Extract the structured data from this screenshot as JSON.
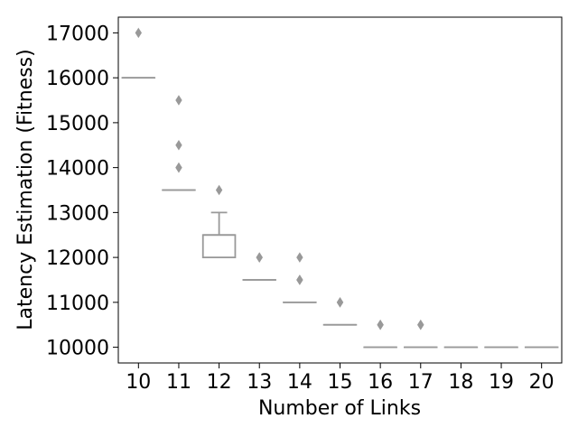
{
  "chart_data": {
    "type": "box",
    "title": "",
    "xlabel": "Number of Links",
    "ylabel": "Latency Estimation (Fitness)",
    "categories": [
      "10",
      "11",
      "12",
      "13",
      "14",
      "15",
      "16",
      "17",
      "18",
      "19",
      "20"
    ],
    "ylim": [
      9650,
      17350
    ],
    "yticks": [
      10000,
      11000,
      12000,
      13000,
      14000,
      15000,
      16000,
      17000
    ],
    "ytick_labels": [
      "10000",
      "11000",
      "12000",
      "13000",
      "14000",
      "15000",
      "16000",
      "17000"
    ],
    "grid": false,
    "box_color": "#999999",
    "boxes": [
      {
        "category": "10",
        "q1": 16000,
        "median": 16000,
        "q3": 16000,
        "whisker_low": 16000,
        "whisker_high": 16000,
        "outliers": [
          17000
        ]
      },
      {
        "category": "11",
        "q1": 13500,
        "median": 13500,
        "q3": 13500,
        "whisker_low": 13500,
        "whisker_high": 13500,
        "outliers": [
          14000,
          14000,
          14500,
          15500
        ]
      },
      {
        "category": "12",
        "q1": 12000,
        "median": 12500,
        "q3": 12500,
        "whisker_low": 12000,
        "whisker_high": 13000,
        "outliers": [
          13500
        ]
      },
      {
        "category": "13",
        "q1": 11500,
        "median": 11500,
        "q3": 11500,
        "whisker_low": 11500,
        "whisker_high": 11500,
        "outliers": [
          12000,
          12000
        ]
      },
      {
        "category": "14",
        "q1": 11000,
        "median": 11000,
        "q3": 11000,
        "whisker_low": 11000,
        "whisker_high": 11000,
        "outliers": [
          11500,
          11500,
          12000
        ]
      },
      {
        "category": "15",
        "q1": 10500,
        "median": 10500,
        "q3": 10500,
        "whisker_low": 10500,
        "whisker_high": 10500,
        "outliers": [
          11000,
          11000
        ]
      },
      {
        "category": "16",
        "q1": 10000,
        "median": 10000,
        "q3": 10000,
        "whisker_low": 10000,
        "whisker_high": 10000,
        "outliers": [
          10500,
          10500
        ]
      },
      {
        "category": "17",
        "q1": 10000,
        "median": 10000,
        "q3": 10000,
        "whisker_low": 10000,
        "whisker_high": 10000,
        "outliers": [
          10500,
          10500
        ]
      },
      {
        "category": "18",
        "q1": 10000,
        "median": 10000,
        "q3": 10000,
        "whisker_low": 10000,
        "whisker_high": 10000,
        "outliers": []
      },
      {
        "category": "19",
        "q1": 10000,
        "median": 10000,
        "q3": 10000,
        "whisker_low": 10000,
        "whisker_high": 10000,
        "outliers": []
      },
      {
        "category": "20",
        "q1": 10000,
        "median": 10000,
        "q3": 10000,
        "whisker_low": 10000,
        "whisker_high": 10000,
        "outliers": []
      }
    ]
  }
}
